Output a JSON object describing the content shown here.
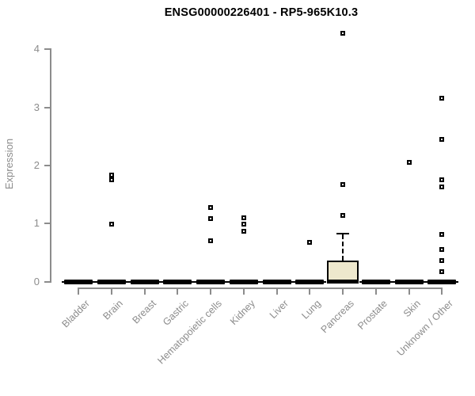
{
  "title": "ENSG00000226401 - RP5-965K10.3",
  "chart_data": {
    "type": "boxplot",
    "title": "ENSG00000226401 - RP5-965K10.3",
    "xlabel": "",
    "ylabel": "Expression",
    "ylim": [
      0,
      4.3
    ],
    "yticks": [
      0,
      1,
      2,
      3,
      4
    ],
    "grid": false,
    "legend": false,
    "colors": {
      "axis": "#8c8c8c",
      "marks": "#000000",
      "box_fill": "#EEE8CD",
      "background": "#ffffff",
      "title": "#000000"
    },
    "categories": [
      "Bladder",
      "Brain",
      "Breast",
      "Gastric",
      "Hematopoietic cells",
      "Kidney",
      "Liver",
      "Lung",
      "Pancreas",
      "Prostate",
      "Skin",
      "Unknown / Other"
    ],
    "series": [
      {
        "category": "Bladder",
        "box": {
          "q1": 0,
          "median": 0,
          "q3": 0,
          "whisker_low": 0,
          "whisker_high": 0
        },
        "outliers": []
      },
      {
        "category": "Brain",
        "box": {
          "q1": 0,
          "median": 0,
          "q3": 0,
          "whisker_low": 0,
          "whisker_high": 0
        },
        "outliers": [
          1.84,
          1.76,
          0.99
        ]
      },
      {
        "category": "Breast",
        "box": {
          "q1": 0,
          "median": 0,
          "q3": 0,
          "whisker_low": 0,
          "whisker_high": 0
        },
        "outliers": []
      },
      {
        "category": "Gastric",
        "box": {
          "q1": 0,
          "median": 0,
          "q3": 0,
          "whisker_low": 0,
          "whisker_high": 0
        },
        "outliers": []
      },
      {
        "category": "Hematopoietic cells",
        "box": {
          "q1": 0,
          "median": 0,
          "q3": 0,
          "whisker_low": 0,
          "whisker_high": 0
        },
        "outliers": [
          1.28,
          1.09,
          0.71
        ]
      },
      {
        "category": "Kidney",
        "box": {
          "q1": 0,
          "median": 0,
          "q3": 0,
          "whisker_low": 0,
          "whisker_high": 0
        },
        "outliers": [
          1.1,
          0.99,
          0.87
        ]
      },
      {
        "category": "Liver",
        "box": {
          "q1": 0,
          "median": 0,
          "q3": 0,
          "whisker_low": 0,
          "whisker_high": 0
        },
        "outliers": []
      },
      {
        "category": "Lung",
        "box": {
          "q1": 0,
          "median": 0,
          "q3": 0,
          "whisker_low": 0,
          "whisker_high": 0
        },
        "outliers": [
          0.68
        ]
      },
      {
        "category": "Pancreas",
        "box": {
          "q1": 0,
          "median": 0,
          "q3": 0.37,
          "whisker_low": 0,
          "whisker_high": 0.83
        },
        "outliers": [
          4.27,
          1.67,
          1.14
        ]
      },
      {
        "category": "Prostate",
        "box": {
          "q1": 0,
          "median": 0,
          "q3": 0,
          "whisker_low": 0,
          "whisker_high": 0
        },
        "outliers": []
      },
      {
        "category": "Skin",
        "box": {
          "q1": 0,
          "median": 0,
          "q3": 0,
          "whisker_low": 0,
          "whisker_high": 0
        },
        "outliers": [
          2.05
        ]
      },
      {
        "category": "Unknown / Other",
        "box": {
          "q1": 0,
          "median": 0,
          "q3": 0,
          "whisker_low": 0,
          "whisker_high": 0
        },
        "outliers": [
          3.16,
          2.45,
          1.76,
          1.63,
          0.81,
          0.55,
          0.36,
          0.17
        ]
      }
    ]
  }
}
